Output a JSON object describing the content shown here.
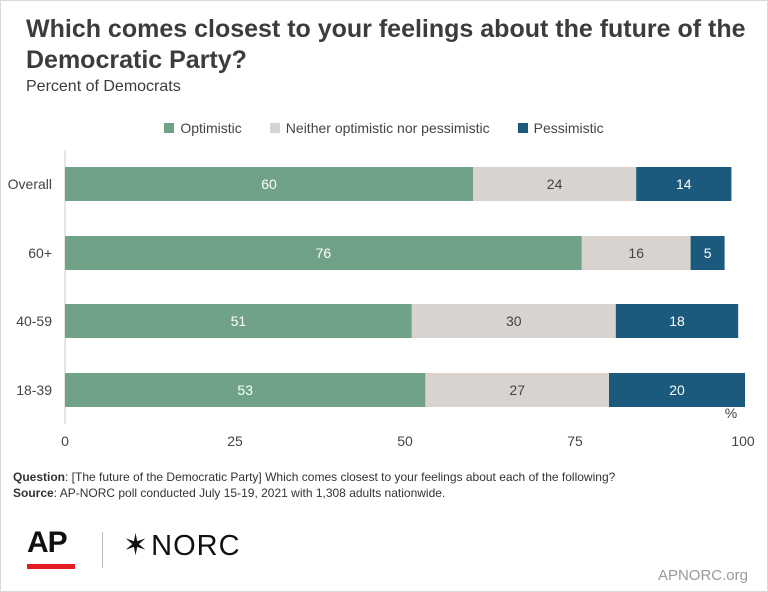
{
  "title": "Which comes closest to your feelings about the future of the Democratic Party?",
  "subtitle": "Percent of Democrats",
  "legend": [
    {
      "label": "Optimistic",
      "color": "#6fa287"
    },
    {
      "label": "Neither optimistic nor pessimistic",
      "color": "#d8d3cf"
    },
    {
      "label": "Pessimistic",
      "color": "#1b5a7c"
    }
  ],
  "chart_data": {
    "type": "bar",
    "orientation": "horizontal",
    "stacked": true,
    "categories": [
      "Overall",
      "60+",
      "40-59",
      "18-39"
    ],
    "series": [
      {
        "name": "Optimistic",
        "values": [
          60,
          76,
          51,
          53
        ],
        "color": "#6fa287",
        "label_color": "#ffffff"
      },
      {
        "name": "Neither optimistic nor pessimistic",
        "values": [
          24,
          16,
          30,
          27
        ],
        "color": "#d8d3cf",
        "label_color": "#444444"
      },
      {
        "name": "Pessimistic",
        "values": [
          14,
          5,
          18,
          20
        ],
        "color": "#1b5a7c",
        "label_color": "#ffffff"
      }
    ],
    "xlim": [
      0,
      100
    ],
    "xticks": [
      0,
      25,
      50,
      75,
      100
    ],
    "unit_label": "%",
    "grid": false,
    "legend_position": "top-center"
  },
  "footnote": {
    "question_label": "Question",
    "question_text": ": [The future of the Democratic Party] Which comes closest to your feelings about each of the following?",
    "source_label": "Source",
    "source_text": ": AP-NORC poll conducted July 15-19, 2021 with 1,308 adults nationwide."
  },
  "logos": {
    "ap": "AP",
    "norc": "NORC",
    "norc_mark": "✶"
  },
  "url": "APNORC.org"
}
